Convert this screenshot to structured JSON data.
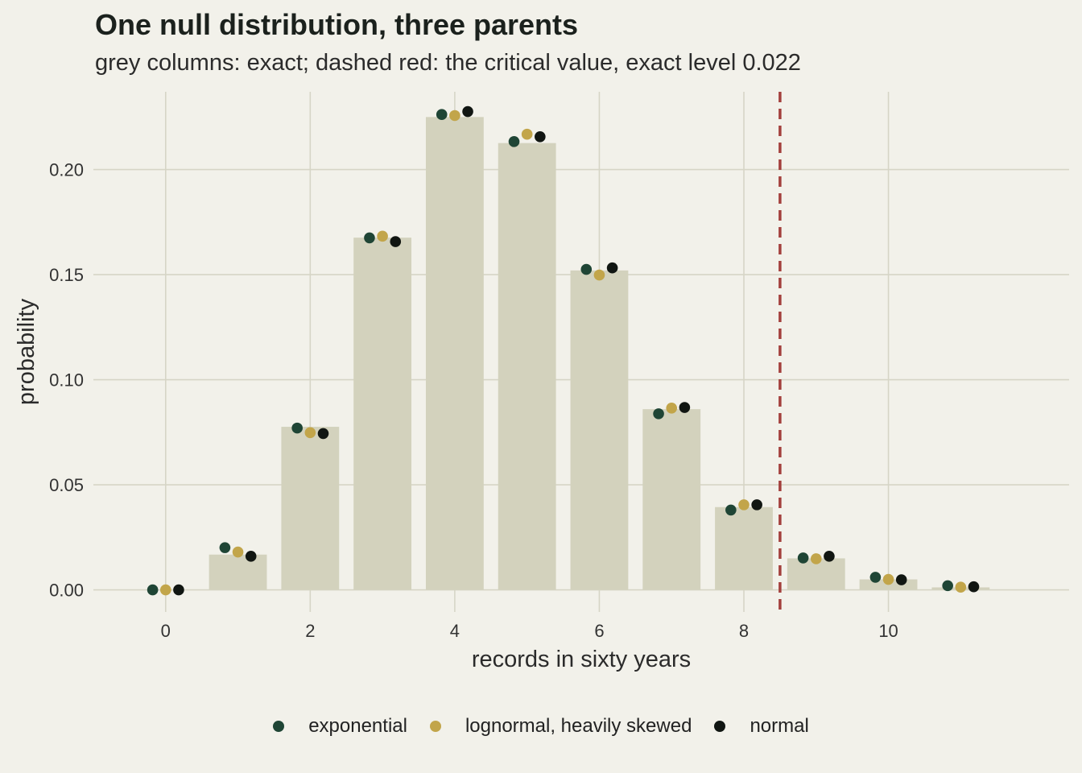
{
  "colors": {
    "background": "#f2f1ea",
    "grid": "#d6d5c6",
    "bar": "#d3d2bd",
    "critical_line": "#a33f3c",
    "exponential": "#1f4535",
    "lognormal": "#c2a54a",
    "normal": "#111612"
  },
  "chart_data": {
    "type": "bar",
    "title": "One null distribution, three parents",
    "subtitle": "grey columns: exact; dashed red: the critical value, exact level 0.022",
    "xlabel": "records in sixty years",
    "ylabel": "probability",
    "xlim": [
      -1,
      12.5
    ],
    "ylim": [
      -0.0105,
      0.237
    ],
    "x_ticks": [
      0,
      2,
      4,
      6,
      8,
      10
    ],
    "x_tick_labels": [
      "0",
      "2",
      "4",
      "6",
      "8",
      "10"
    ],
    "y_ticks": [
      0,
      0.05,
      0.1,
      0.15,
      0.2
    ],
    "y_tick_labels": [
      "0.00",
      "0.05",
      "0.10",
      "0.15",
      "0.20"
    ],
    "grid": true,
    "critical_value": 8.5,
    "x": [
      0,
      1,
      2,
      3,
      4,
      5,
      6,
      7,
      8,
      9,
      10,
      11
    ],
    "exact": [
      0.0,
      0.0168,
      0.0776,
      0.1676,
      0.225,
      0.2126,
      0.152,
      0.086,
      0.0394,
      0.015,
      0.005,
      0.0012
    ],
    "series": [
      {
        "name": "exponential",
        "color_key": "exponential",
        "offset": -0.18,
        "values": [
          0.0,
          0.0201,
          0.077,
          0.1675,
          0.2262,
          0.2133,
          0.1525,
          0.0838,
          0.038,
          0.0152,
          0.006,
          0.002
        ]
      },
      {
        "name": "lognormal, heavily skewed",
        "color_key": "lognormal",
        "offset": 0,
        "values": [
          0.0,
          0.018,
          0.0748,
          0.1683,
          0.2257,
          0.2168,
          0.1498,
          0.0865,
          0.0405,
          0.0148,
          0.005,
          0.0013
        ]
      },
      {
        "name": "normal",
        "color_key": "normal",
        "offset": 0.18,
        "values": [
          0.0,
          0.016,
          0.0744,
          0.1657,
          0.2276,
          0.2156,
          0.1532,
          0.0868,
          0.0405,
          0.016,
          0.0048,
          0.0015
        ]
      }
    ],
    "legend_position": "bottom"
  }
}
